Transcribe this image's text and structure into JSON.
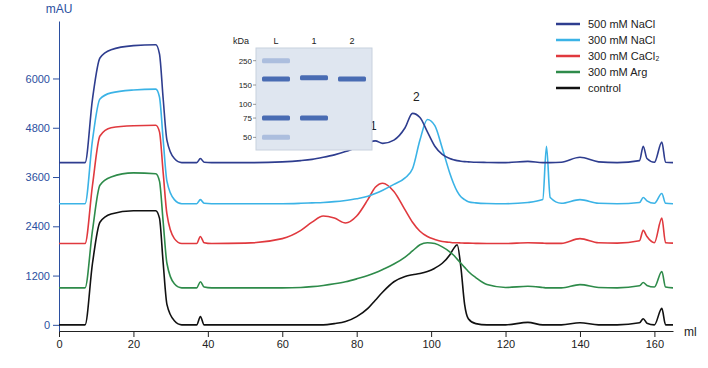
{
  "chart_data": {
    "type": "line",
    "x_label": "ml",
    "y_label": "mAU",
    "x": [
      0,
      7,
      9,
      11,
      14,
      20,
      26,
      27,
      28,
      29,
      31,
      33,
      37,
      38,
      39,
      41,
      50,
      60,
      65,
      68,
      71,
      74,
      77,
      80,
      83,
      85,
      87,
      90,
      93,
      95,
      97,
      99,
      101,
      103,
      105,
      106,
      107,
      108,
      109,
      110,
      112,
      115,
      120,
      126,
      130,
      131,
      132,
      135,
      140,
      145,
      150,
      156,
      157,
      158,
      160,
      162,
      163,
      165
    ],
    "xlim": [
      0,
      165
    ],
    "xticks": [
      0,
      20,
      40,
      60,
      80,
      100,
      120,
      140,
      160
    ],
    "ylim": [
      -150,
      7400
    ],
    "yticks": [
      0,
      1200,
      2400,
      3600,
      4800,
      6000
    ],
    "legend": "top-right",
    "series": [
      {
        "name": "500 mM NaCl",
        "color": "#2e3d8f",
        "values": [
          3950,
          3950,
          5500,
          6500,
          6700,
          6800,
          6820,
          6600,
          5500,
          4500,
          4050,
          3950,
          3950,
          4050,
          3960,
          3950,
          3950,
          3970,
          4000,
          4030,
          4080,
          4140,
          4220,
          4320,
          4430,
          4480,
          4420,
          4500,
          4800,
          5150,
          5050,
          4700,
          4350,
          4150,
          4050,
          4020,
          4000,
          3985,
          3975,
          3970,
          3960,
          3955,
          3950,
          3980,
          3950,
          3950,
          3950,
          3960,
          4080,
          3970,
          3950,
          4000,
          4350,
          4050,
          3960,
          4450,
          3960,
          3950
        ]
      },
      {
        "name": "300 mM NaCl",
        "color": "#3bb3e6",
        "values": [
          2950,
          2950,
          4500,
          5500,
          5650,
          5720,
          5740,
          5550,
          4500,
          3500,
          3050,
          2950,
          2950,
          3050,
          2960,
          2950,
          2950,
          2950,
          2960,
          2970,
          2980,
          3000,
          3030,
          3070,
          3130,
          3200,
          3280,
          3420,
          3580,
          3800,
          4500,
          5000,
          4850,
          4300,
          3700,
          3450,
          3250,
          3120,
          3050,
          3000,
          2970,
          2955,
          2950,
          2980,
          3050,
          4350,
          3100,
          2960,
          3050,
          2960,
          2950,
          2980,
          3100,
          3020,
          2960,
          3200,
          2960,
          2950
        ]
      },
      {
        "name": "300 mM CaCl₂",
        "color": "#e0393e",
        "values": [
          1980,
          1980,
          3400,
          4600,
          4800,
          4850,
          4860,
          4700,
          3700,
          2700,
          2100,
          1980,
          1980,
          2150,
          2000,
          1980,
          1990,
          2100,
          2300,
          2500,
          2650,
          2600,
          2480,
          2650,
          3050,
          3350,
          3450,
          3250,
          2800,
          2500,
          2280,
          2150,
          2080,
          2030,
          2010,
          2000,
          2000,
          1995,
          1990,
          1990,
          1985,
          1980,
          1980,
          2000,
          1990,
          1985,
          1985,
          1985,
          2100,
          2000,
          1990,
          2050,
          2300,
          2150,
          2000,
          2600,
          2000,
          1990
        ]
      },
      {
        "name": "300 mM Arg",
        "color": "#2e8b4a",
        "values": [
          900,
          900,
          2300,
          3400,
          3600,
          3700,
          3680,
          3500,
          2500,
          1500,
          1000,
          900,
          900,
          1050,
          920,
          900,
          900,
          900,
          910,
          930,
          960,
          1000,
          1050,
          1120,
          1200,
          1270,
          1350,
          1480,
          1650,
          1800,
          1950,
          2000,
          1980,
          1900,
          1780,
          1700,
          1600,
          1500,
          1400,
          1300,
          1150,
          980,
          910,
          940,
          910,
          900,
          900,
          900,
          980,
          910,
          900,
          950,
          1030,
          960,
          920,
          1300,
          920,
          900
        ]
      },
      {
        "name": "control",
        "color": "#111111",
        "values": [
          0,
          0,
          1500,
          2500,
          2700,
          2780,
          2780,
          2600,
          1500,
          500,
          100,
          0,
          0,
          200,
          0,
          0,
          0,
          0,
          0,
          0,
          0,
          30,
          80,
          200,
          400,
          600,
          800,
          1050,
          1180,
          1220,
          1250,
          1300,
          1380,
          1500,
          1700,
          1850,
          1950,
          1400,
          500,
          150,
          30,
          0,
          0,
          60,
          0,
          0,
          0,
          0,
          50,
          0,
          0,
          50,
          150,
          40,
          0,
          400,
          0,
          0
        ]
      }
    ],
    "annotations": [
      {
        "text": "1",
        "x": 84.5,
        "y": 4750
      },
      {
        "text": "2",
        "x": 96,
        "y": 5450
      }
    ],
    "inset": {
      "y_label": "kDa",
      "log": true,
      "ylim": [
        300,
        40
      ],
      "yticks": [
        250,
        150,
        100,
        75,
        50
      ],
      "lanes": [
        "L",
        "1",
        "2"
      ],
      "bands": [
        [
          250,
          170,
          75,
          50
        ],
        [
          175,
          75
        ],
        [
          170
        ]
      ]
    }
  }
}
